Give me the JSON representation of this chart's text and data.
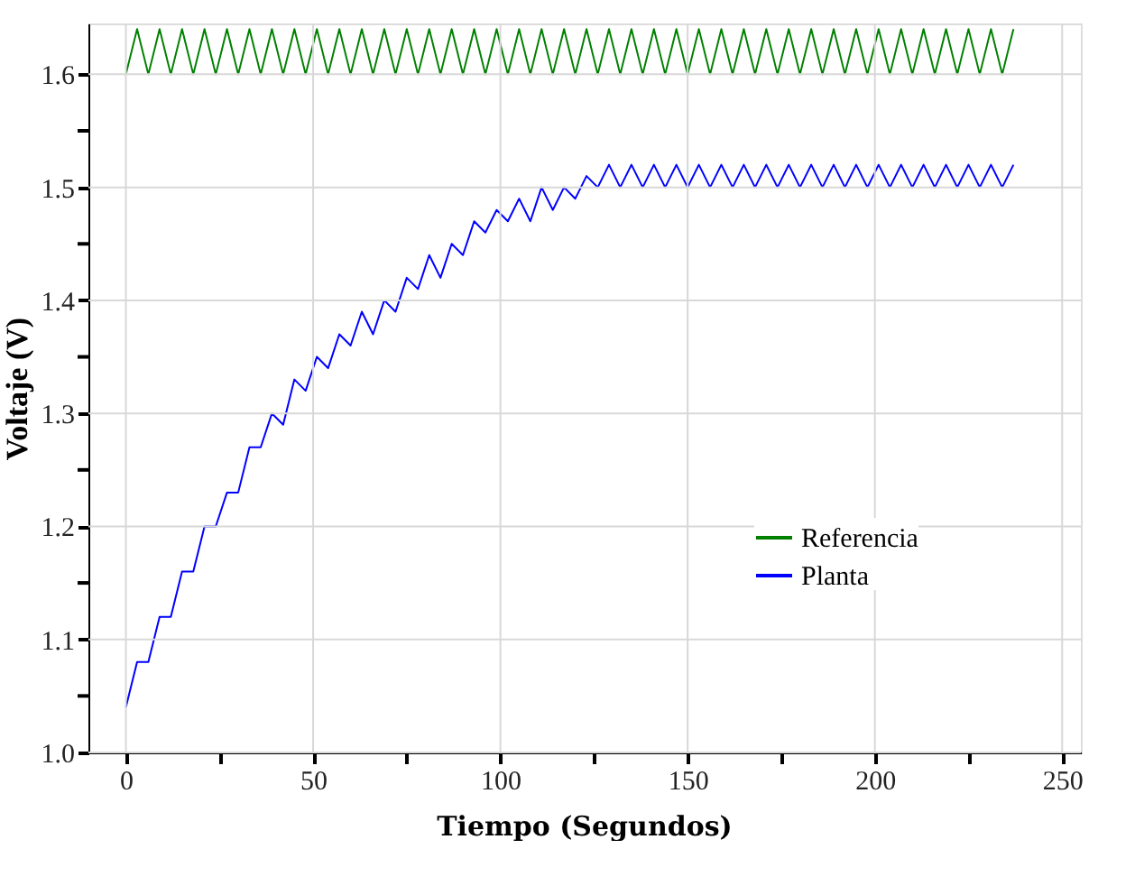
{
  "chart_data": {
    "type": "line",
    "xlabel": "Tiempo (Segundos)",
    "ylabel": "Voltaje (V)",
    "x": [
      0,
      3,
      6,
      9,
      12,
      15,
      18,
      21,
      24,
      27,
      30,
      33,
      36,
      39,
      42,
      45,
      48,
      51,
      54,
      57,
      60,
      63,
      66,
      69,
      72,
      75,
      78,
      81,
      84,
      87,
      90,
      93,
      96,
      99,
      102,
      105,
      108,
      111,
      114,
      117,
      120,
      123,
      126,
      129,
      132,
      135,
      138,
      141,
      144,
      147,
      150,
      153,
      156,
      159,
      162,
      165,
      168,
      171,
      174,
      177,
      180,
      183,
      186,
      189,
      192,
      195,
      198,
      201,
      204,
      207,
      210,
      213,
      216,
      219,
      222,
      225,
      228,
      231,
      234,
      237
    ],
    "series": [
      {
        "name": "Referencia",
        "color": "#008000",
        "values": [
          1.6,
          1.64,
          1.6,
          1.64,
          1.6,
          1.64,
          1.6,
          1.64,
          1.6,
          1.64,
          1.6,
          1.64,
          1.6,
          1.64,
          1.6,
          1.64,
          1.6,
          1.64,
          1.6,
          1.64,
          1.6,
          1.64,
          1.6,
          1.64,
          1.6,
          1.64,
          1.6,
          1.64,
          1.6,
          1.64,
          1.6,
          1.64,
          1.6,
          1.64,
          1.6,
          1.64,
          1.6,
          1.64,
          1.6,
          1.64,
          1.6,
          1.64,
          1.6,
          1.64,
          1.6,
          1.64,
          1.6,
          1.64,
          1.6,
          1.64,
          1.6,
          1.64,
          1.6,
          1.64,
          1.6,
          1.64,
          1.6,
          1.64,
          1.6,
          1.64,
          1.6,
          1.64,
          1.6,
          1.64,
          1.6,
          1.64,
          1.6,
          1.64,
          1.6,
          1.64,
          1.6,
          1.64,
          1.6,
          1.64,
          1.6,
          1.64,
          1.6,
          1.64,
          1.6,
          1.64
        ]
      },
      {
        "name": "Planta",
        "color": "#0000ff",
        "values": [
          1.04,
          1.08,
          1.08,
          1.12,
          1.12,
          1.16,
          1.16,
          1.2,
          1.2,
          1.23,
          1.23,
          1.27,
          1.27,
          1.3,
          1.29,
          1.33,
          1.32,
          1.35,
          1.34,
          1.37,
          1.36,
          1.39,
          1.37,
          1.4,
          1.39,
          1.42,
          1.41,
          1.44,
          1.42,
          1.45,
          1.44,
          1.47,
          1.46,
          1.48,
          1.47,
          1.49,
          1.47,
          1.5,
          1.48,
          1.5,
          1.49,
          1.51,
          1.5,
          1.52,
          1.5,
          1.52,
          1.5,
          1.52,
          1.5,
          1.52,
          1.5,
          1.52,
          1.5,
          1.52,
          1.5,
          1.52,
          1.5,
          1.52,
          1.5,
          1.52,
          1.5,
          1.52,
          1.5,
          1.52,
          1.5,
          1.52,
          1.5,
          1.52,
          1.5,
          1.52,
          1.5,
          1.52,
          1.5,
          1.52,
          1.5,
          1.52,
          1.5,
          1.52,
          1.5,
          1.52
        ]
      }
    ],
    "xlim": [
      -10,
      255
    ],
    "ylim": [
      1.0,
      1.645
    ],
    "xticks": [
      0,
      {
        "value": 25,
        "label": null
      },
      50,
      {
        "value": 75,
        "label": null
      },
      100,
      {
        "value": 125,
        "label": null
      },
      150,
      {
        "value": 175,
        "label": null
      },
      200,
      {
        "value": 225,
        "label": null
      },
      250
    ],
    "yticks": [
      {
        "value": 1.0,
        "label": "1.0"
      },
      {
        "value": 1.05,
        "label": null
      },
      1.1,
      {
        "value": 1.15,
        "label": null
      },
      1.2,
      {
        "value": 1.25,
        "label": null
      },
      1.3,
      {
        "value": 1.35,
        "label": null
      },
      1.4,
      {
        "value": 1.45,
        "label": null
      },
      1.5,
      {
        "value": 1.55,
        "label": null
      },
      1.6
    ],
    "grid": true,
    "legend": "bottom right",
    "marker": "none"
  }
}
